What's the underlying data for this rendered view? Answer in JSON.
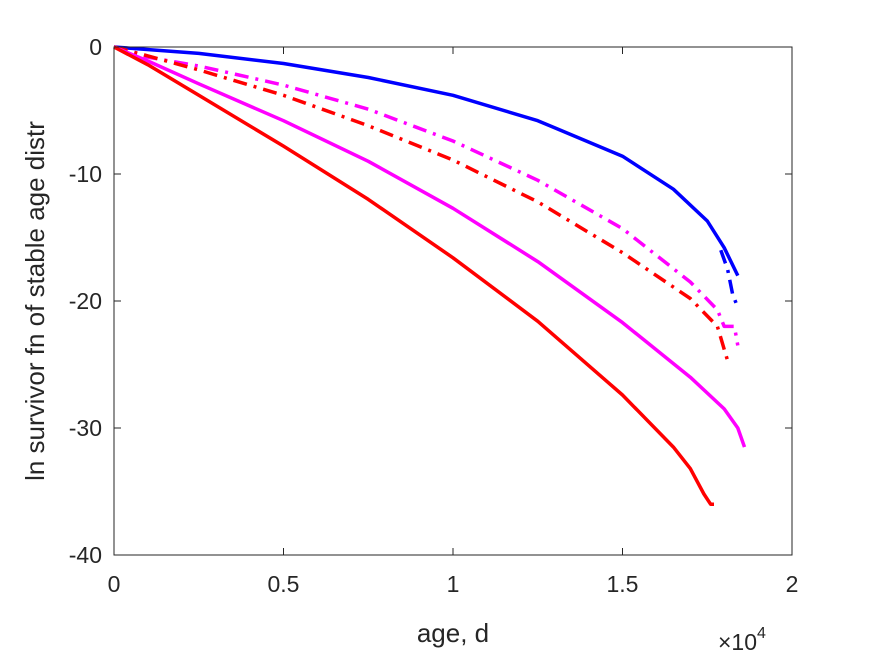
{
  "chart_data": {
    "type": "line",
    "title": "",
    "xlabel": "age, d",
    "ylabel": "ln survivor fn of stable age distr",
    "x_multiplier_label": {
      "base": "×10",
      "exponent": "4"
    },
    "xlim": [
      0,
      20000
    ],
    "ylim": [
      -40,
      0
    ],
    "xticks": [
      0,
      5000,
      10000,
      15000,
      20000
    ],
    "xtick_labels": [
      "0",
      "0.5",
      "1",
      "1.5",
      "2"
    ],
    "yticks": [
      -40,
      -30,
      -20,
      -10,
      0
    ],
    "ytick_labels": [
      "-40",
      "-30",
      "-20",
      "-10",
      "0"
    ],
    "grid": false,
    "colors": {
      "blue": "#0000ff",
      "magenta": "#ff00ff",
      "red": "#ff0000"
    },
    "series": [
      {
        "color": "#0000ff",
        "style": "solid",
        "points": [
          [
            0,
            0
          ],
          [
            2500,
            -0.5
          ],
          [
            5000,
            -1.3
          ],
          [
            7500,
            -2.4
          ],
          [
            10000,
            -3.8
          ],
          [
            12500,
            -5.8
          ],
          [
            15000,
            -8.6
          ],
          [
            16500,
            -11.2
          ],
          [
            17500,
            -13.7
          ],
          [
            18000,
            -15.8
          ],
          [
            18400,
            -18.0
          ]
        ]
      },
      {
        "color": "#0000ff",
        "style": "dashdot",
        "points": [
          [
            17900,
            -16.0
          ],
          [
            18100,
            -17.5
          ],
          [
            18250,
            -19.5
          ],
          [
            18400,
            -20.5
          ]
        ]
      },
      {
        "color": "#ff00ff",
        "style": "dashdot",
        "points": [
          [
            0,
            0
          ],
          [
            1000,
            -0.8
          ],
          [
            2500,
            -1.5
          ],
          [
            5000,
            -3.0
          ],
          [
            7500,
            -4.9
          ],
          [
            10000,
            -7.4
          ],
          [
            12500,
            -10.5
          ],
          [
            15000,
            -14.3
          ],
          [
            17000,
            -18.5
          ],
          [
            17800,
            -20.7
          ],
          [
            18000,
            -22.0
          ],
          [
            18300,
            -22.0
          ],
          [
            18400,
            -23.5
          ]
        ]
      },
      {
        "color": "#ff0000",
        "style": "dashdot",
        "points": [
          [
            0,
            0
          ],
          [
            1000,
            -0.7
          ],
          [
            2500,
            -1.8
          ],
          [
            5000,
            -3.8
          ],
          [
            7500,
            -6.2
          ],
          [
            10000,
            -8.9
          ],
          [
            12500,
            -12.2
          ],
          [
            15000,
            -16.2
          ],
          [
            17000,
            -19.8
          ],
          [
            17800,
            -22.0
          ],
          [
            18100,
            -24.7
          ]
        ]
      },
      {
        "color": "#ff00ff",
        "style": "solid",
        "points": [
          [
            0,
            0
          ],
          [
            1000,
            -1.1
          ],
          [
            2500,
            -2.9
          ],
          [
            5000,
            -5.8
          ],
          [
            7500,
            -9.0
          ],
          [
            10000,
            -12.7
          ],
          [
            12500,
            -16.9
          ],
          [
            15000,
            -21.7
          ],
          [
            17000,
            -26.0
          ],
          [
            18000,
            -28.5
          ],
          [
            18400,
            -30.0
          ],
          [
            18600,
            -31.5
          ]
        ]
      },
      {
        "color": "#ff0000",
        "style": "solid",
        "points": [
          [
            0,
            0
          ],
          [
            1000,
            -1.4
          ],
          [
            2500,
            -3.8
          ],
          [
            5000,
            -7.8
          ],
          [
            7500,
            -12.0
          ],
          [
            10000,
            -16.6
          ],
          [
            12500,
            -21.6
          ],
          [
            15000,
            -27.4
          ],
          [
            16500,
            -31.5
          ],
          [
            17000,
            -33.2
          ],
          [
            17400,
            -35.2
          ],
          [
            17600,
            -36.0
          ],
          [
            17700,
            -36.0
          ]
        ]
      }
    ]
  }
}
